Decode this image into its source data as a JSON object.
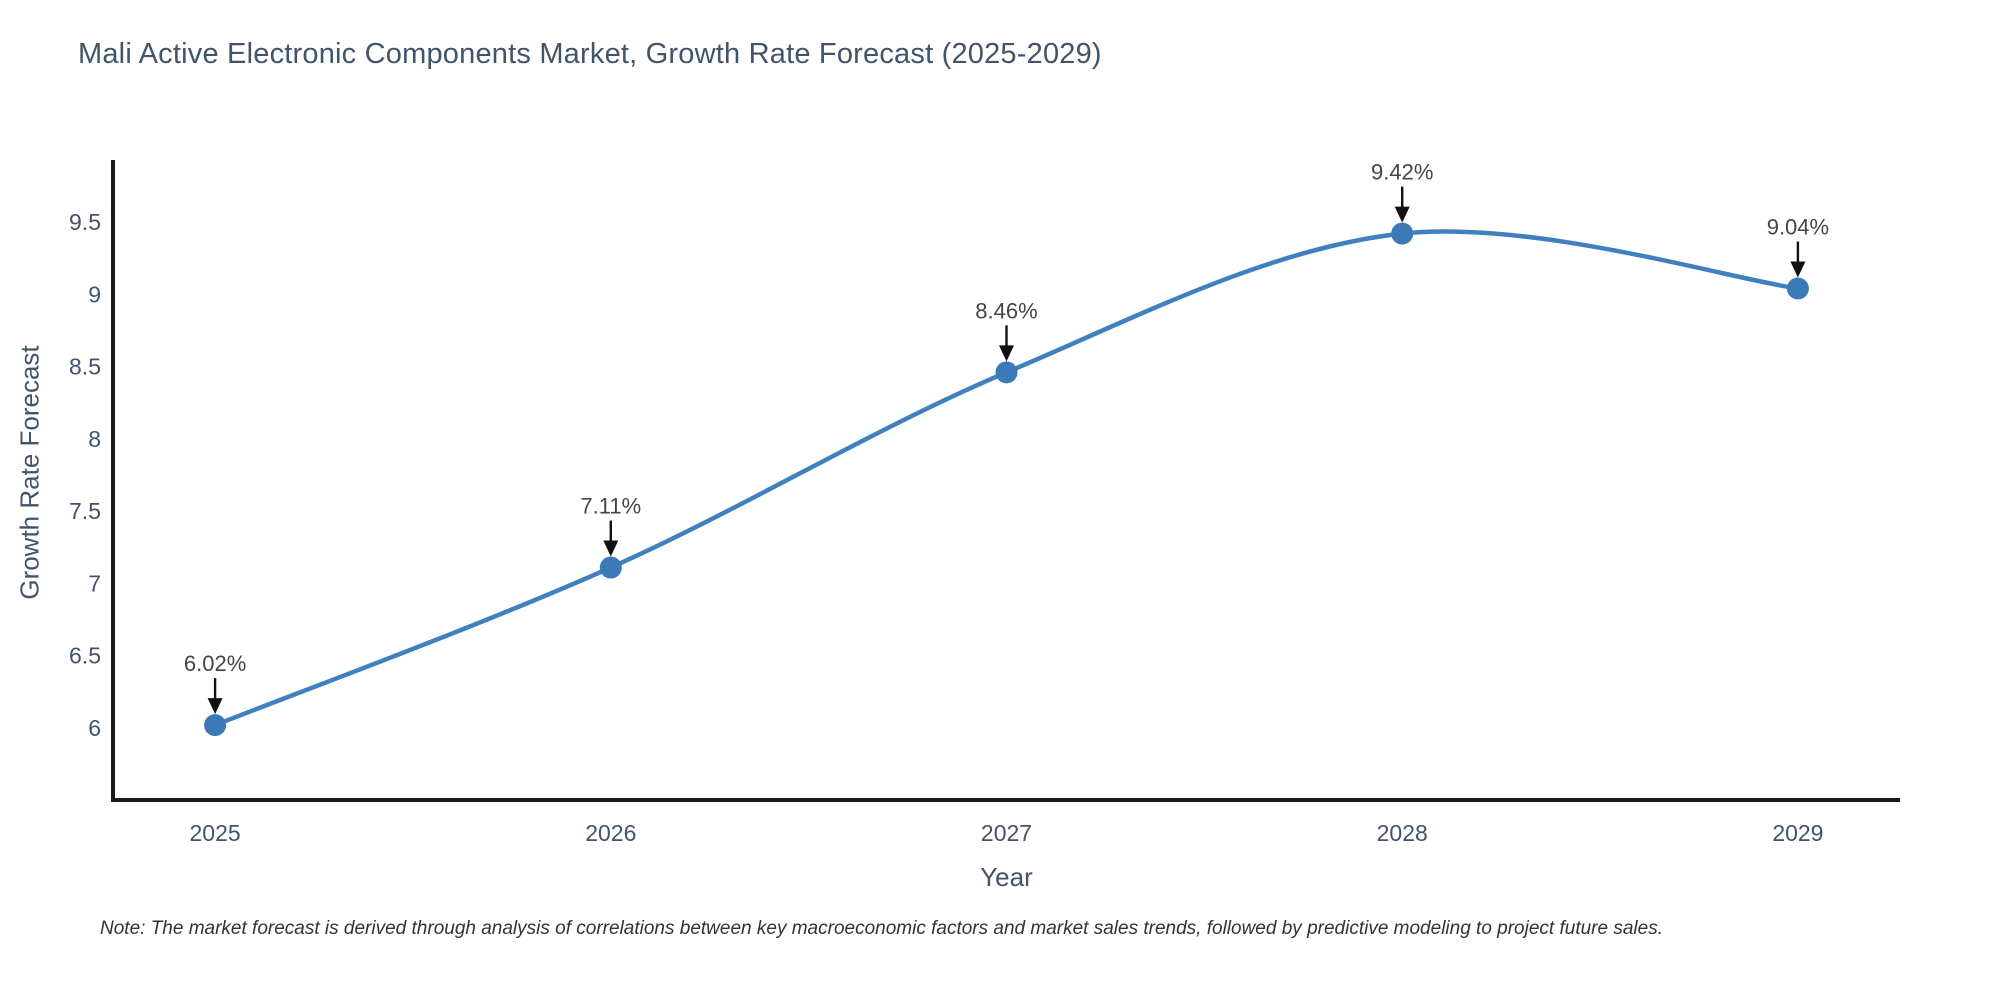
{
  "title": "Mali Active Electronic Components Market, Growth Rate Forecast (2025-2029)",
  "note": "Note: The market forecast is derived through analysis of correlations between key macroeconomic factors and market sales trends, followed by predictive modeling to project future sales.",
  "chart_data": {
    "type": "line",
    "line_shape": "spline",
    "grid": false,
    "legend": "none",
    "title": "Mali Active Electronic Components Market, Growth Rate Forecast (2025-2029)",
    "xlabel": "Year",
    "ylabel": "Growth Rate Forecast",
    "x": [
      2025,
      2026,
      2027,
      2028,
      2029
    ],
    "values": [
      6.02,
      7.11,
      8.46,
      9.42,
      9.04
    ],
    "point_labels": [
      "6.02%",
      "7.11%",
      "8.46%",
      "9.42%",
      "9.04%"
    ],
    "xtick_labels": [
      "2025",
      "2026",
      "2027",
      "2028",
      "2029"
    ],
    "yticks": [
      6,
      6.5,
      7,
      7.5,
      8,
      8.5,
      9,
      9.5
    ],
    "ytick_labels": [
      "6",
      "6.5",
      "7",
      "7.5",
      "8",
      "8.5",
      "9",
      "9.5"
    ],
    "xlim": [
      2024.742,
      2029.258
    ],
    "ylim": [
      5.502,
      9.929
    ],
    "colors": {
      "line": "#4080bf",
      "marker": "#3b79b7",
      "axis": "#1a1a1a",
      "tick_text": "#42536a",
      "title_text": "#42536a",
      "annotation_text": "#454545",
      "annotation_arrow": "#111111",
      "note_text": "#333333",
      "background": "#ffffff"
    }
  }
}
